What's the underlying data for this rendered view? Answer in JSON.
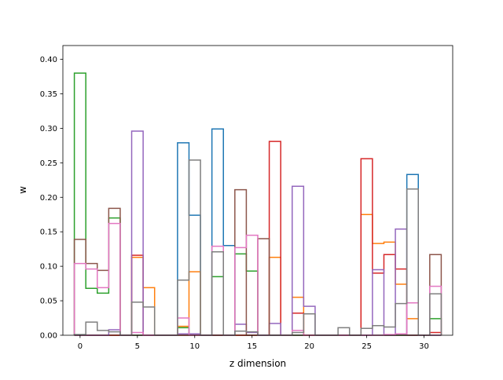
{
  "chart_data": {
    "type": "step",
    "title": "",
    "xlabel": "z dimension",
    "ylabel": "w",
    "xlim": [
      -1.5,
      32.5
    ],
    "ylim": [
      0,
      0.42
    ],
    "grid": false,
    "legend": "none",
    "x_ticks": [
      0,
      5,
      10,
      15,
      20,
      25,
      30
    ],
    "x_tick_labels": [
      "0",
      "5",
      "10",
      "15",
      "20",
      "25",
      "30"
    ],
    "y_ticks": [
      0.0,
      0.05,
      0.1,
      0.15,
      0.2,
      0.25,
      0.3,
      0.35,
      0.4
    ],
    "y_tick_labels": [
      "0.00",
      "0.05",
      "0.10",
      "0.15",
      "0.20",
      "0.25",
      "0.30",
      "0.35",
      "0.40"
    ],
    "x": [
      0,
      1,
      2,
      3,
      4,
      5,
      6,
      7,
      8,
      9,
      10,
      11,
      12,
      13,
      14,
      15,
      16,
      17,
      18,
      19,
      20,
      21,
      22,
      23,
      24,
      25,
      26,
      27,
      28,
      29,
      30,
      31
    ],
    "series": [
      {
        "color": "#1f77b4",
        "values": [
          0,
          0,
          0,
          0,
          0,
          0,
          0,
          0,
          0,
          0.279,
          0.174,
          0,
          0.299,
          0.13,
          0,
          0,
          0,
          0,
          0,
          0,
          0,
          0,
          0,
          0,
          0,
          0,
          0,
          0,
          0,
          0.233,
          0,
          0
        ]
      },
      {
        "color": "#ff7f0e",
        "values": [
          0,
          0,
          0,
          0,
          0,
          0.113,
          0.069,
          0,
          0,
          0.013,
          0.092,
          0,
          0,
          0,
          0,
          0,
          0,
          0.113,
          0,
          0.055,
          0,
          0,
          0,
          0,
          0,
          0.175,
          0.133,
          0.135,
          0.074,
          0.024,
          0,
          0
        ]
      },
      {
        "color": "#2ca02c",
        "values": [
          0.38,
          0.068,
          0.061,
          0.17,
          0,
          0,
          0,
          0,
          0,
          0.011,
          0,
          0,
          0.085,
          0,
          0.118,
          0.093,
          0,
          0,
          0,
          0,
          0,
          0,
          0,
          0,
          0,
          0,
          0,
          0,
          0,
          0,
          0,
          0.024
        ]
      },
      {
        "color": "#d62728",
        "values": [
          0,
          0,
          0,
          0,
          0,
          0.116,
          0,
          0,
          0,
          0,
          0,
          0,
          0,
          0,
          0,
          0,
          0,
          0.281,
          0,
          0.032,
          0,
          0,
          0,
          0,
          0,
          0.256,
          0.09,
          0.117,
          0.096,
          0,
          0,
          0.004
        ]
      },
      {
        "color": "#9467bd",
        "values": [
          0,
          0,
          0,
          0.008,
          0,
          0.296,
          0,
          0,
          0,
          0.002,
          0.002,
          0,
          0,
          0,
          0.016,
          0.004,
          0,
          0.017,
          0,
          0.216,
          0.042,
          0,
          0,
          0,
          0,
          0,
          0.095,
          0,
          0.154,
          0,
          0,
          0
        ]
      },
      {
        "color": "#8c564b",
        "values": [
          0.139,
          0.104,
          0.094,
          0.184,
          0,
          0,
          0,
          0,
          0,
          0,
          0,
          0,
          0,
          0,
          0.211,
          0,
          0.14,
          0,
          0,
          0,
          0,
          0,
          0,
          0,
          0,
          0,
          0,
          0,
          0,
          0,
          0,
          0.117
        ]
      },
      {
        "color": "#e377c2",
        "values": [
          0.104,
          0.096,
          0.069,
          0.162,
          0,
          0.004,
          0,
          0,
          0,
          0.025,
          0,
          0,
          0.129,
          0,
          0.127,
          0.145,
          0,
          0,
          0,
          0.007,
          0,
          0,
          0,
          0,
          0,
          0,
          0,
          0.001,
          0.002,
          0.047,
          0,
          0.071
        ]
      },
      {
        "color": "#7f7f7f",
        "values": [
          0.001,
          0.019,
          0.007,
          0.005,
          0,
          0.048,
          0.041,
          0,
          0,
          0.08,
          0.254,
          0,
          0.121,
          0,
          0.006,
          0.005,
          0,
          0,
          0,
          0.004,
          0.031,
          0,
          0,
          0.011,
          0,
          0.01,
          0.014,
          0.012,
          0.046,
          0.212,
          0,
          0.06
        ]
      }
    ]
  }
}
